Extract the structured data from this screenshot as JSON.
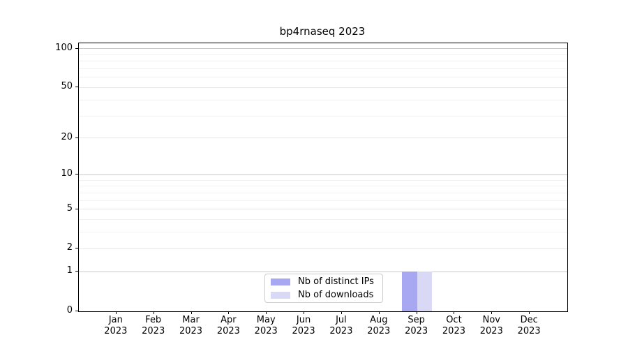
{
  "title": "bp4rnaseq 2023",
  "chart_data": {
    "type": "bar",
    "title": "bp4rnaseq 2023",
    "categories": [
      "Jan",
      "Feb",
      "Mar",
      "Apr",
      "May",
      "Jun",
      "Jul",
      "Aug",
      "Sep",
      "Oct",
      "Nov",
      "Dec"
    ],
    "category_year": "2023",
    "series": [
      {
        "name": "Nb of distinct IPs",
        "color": "#a8a8f2",
        "values": [
          0,
          0,
          0,
          0,
          0,
          0,
          0,
          0,
          1,
          0,
          0,
          0
        ]
      },
      {
        "name": "Nb of downloads",
        "color": "#d9d9f6",
        "values": [
          0,
          0,
          0,
          0,
          0,
          0,
          0,
          0,
          1,
          0,
          0,
          0
        ]
      }
    ],
    "xlabel": "",
    "ylabel": "",
    "yscale": "log1p",
    "ylim": [
      0,
      109
    ],
    "yticks_major": [
      0,
      1,
      2,
      5,
      10,
      20,
      50,
      100
    ],
    "yticks_emphasized": [
      1,
      10,
      100
    ],
    "yticks_minor": [
      3,
      4,
      6,
      7,
      8,
      9,
      30,
      40,
      60,
      70,
      80,
      90
    ],
    "grid": "on",
    "legend_position": "lower center"
  },
  "colors": {
    "ips_bar": "#a8a8f2",
    "downloads_bar": "#d9d9f6",
    "grid_strong": "#c9c9c9",
    "grid_light": "#e7e7e7",
    "grid_minor": "#f2f2f2",
    "spine": "#000000",
    "background": "#ffffff",
    "legend_border": "#cccccc"
  }
}
